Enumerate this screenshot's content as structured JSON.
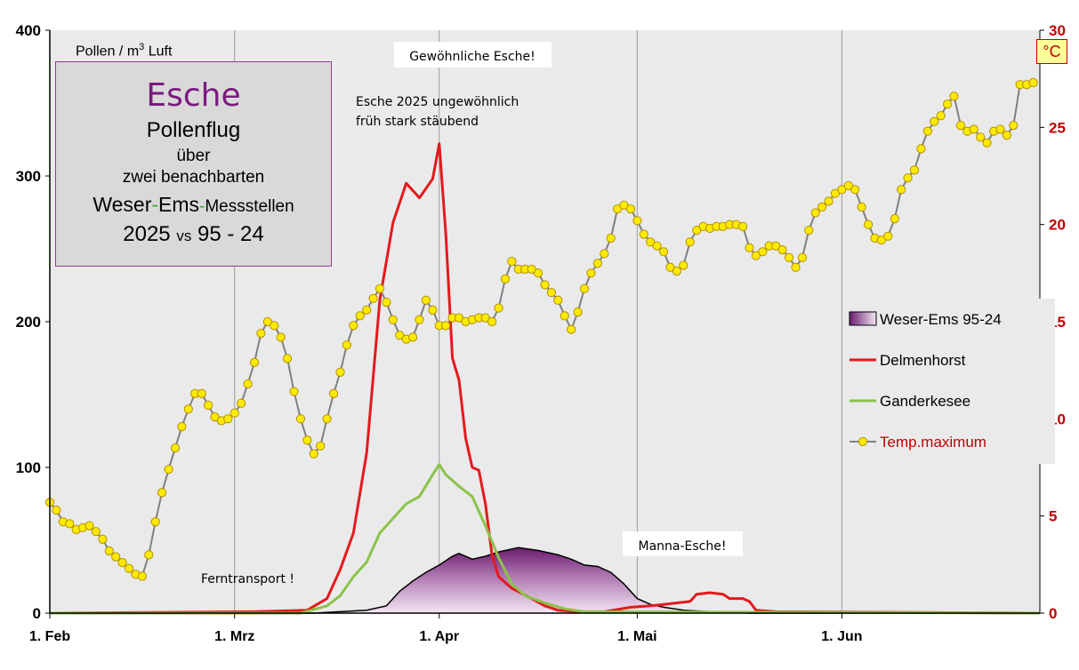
{
  "title_box": {
    "species": "Esche",
    "line1": "Pollenflug",
    "line2": "über",
    "line3": "zwei benachbarten",
    "line4_a": "Weser",
    "line4_dash": "-",
    "line4_b": "Ems",
    "line4_dash2": "-",
    "line4_c": "Messstellen",
    "line5_a": "2025 ",
    "line5_vs": "vs",
    "line5_b": " 95 - 24"
  },
  "unit_label": {
    "text": "Pollen / m",
    "sup": "3",
    "tail": " Luft"
  },
  "celsius_badge": "°C",
  "annotations": {
    "common_ash": "Gewöhnliche Esche!",
    "early_line1": "Esche 2025 ungewöhnlich",
    "early_line2": "früh stark stäubend",
    "manna_ash": "Manna-Esche!",
    "long_range": "Ferntransport  !"
  },
  "colors": {
    "delmenhorst": "#e31a1c",
    "ganderkesee": "#8bc34a",
    "temp_marker": "#ffeb00",
    "temp_line": "#808080",
    "temp_axis": "#c00000",
    "area_top": "#6a1b6e",
    "area_bottom": "#f3e6f3",
    "manna_text": "#e31a1c",
    "plot_bg": "#eaeaea"
  },
  "chart_data": {
    "type": "line",
    "x_ticks": [
      {
        "label": "1. Feb",
        "day": 0
      },
      {
        "label": "1. Mrz",
        "day": 28
      },
      {
        "label": "1. Apr",
        "day": 59
      },
      {
        "label": "1. Mai",
        "day": 89
      },
      {
        "label": "1. Jun",
        "day": 120
      }
    ],
    "x_range": [
      0,
      150
    ],
    "y_left": {
      "label": "Pollen / m³ Luft",
      "range": [
        0,
        400
      ],
      "ticks": [
        0,
        100,
        200,
        300,
        400
      ]
    },
    "y_right": {
      "label": "°C",
      "range": [
        0,
        30
      ],
      "ticks": [
        0,
        5,
        10,
        15,
        20,
        25,
        30
      ]
    },
    "series": [
      {
        "name": "Weser-Ems 95-24",
        "kind": "area",
        "axis": "left",
        "points": [
          [
            0,
            0
          ],
          [
            40,
            0
          ],
          [
            44,
            1
          ],
          [
            48,
            2
          ],
          [
            51,
            5
          ],
          [
            53,
            15
          ],
          [
            55,
            22
          ],
          [
            57,
            28
          ],
          [
            59,
            33
          ],
          [
            61,
            39
          ],
          [
            62,
            41
          ],
          [
            64,
            37
          ],
          [
            66,
            39
          ],
          [
            68,
            42
          ],
          [
            71,
            45
          ],
          [
            74,
            43
          ],
          [
            77,
            40
          ],
          [
            79,
            37
          ],
          [
            81,
            33
          ],
          [
            83,
            32
          ],
          [
            85,
            28
          ],
          [
            87,
            20
          ],
          [
            89,
            10
          ],
          [
            91,
            6
          ],
          [
            93,
            4
          ],
          [
            96,
            2
          ],
          [
            100,
            1
          ],
          [
            106,
            0
          ],
          [
            150,
            0
          ]
        ]
      },
      {
        "name": "Delmenhorst",
        "kind": "line",
        "axis": "left",
        "points": [
          [
            0,
            0
          ],
          [
            31,
            1
          ],
          [
            39,
            2
          ],
          [
            42,
            10
          ],
          [
            44,
            30
          ],
          [
            46,
            55
          ],
          [
            48,
            110
          ],
          [
            50,
            215
          ],
          [
            52,
            268
          ],
          [
            54,
            295
          ],
          [
            56,
            285
          ],
          [
            58,
            298
          ],
          [
            59,
            322
          ],
          [
            60,
            260
          ],
          [
            61,
            175
          ],
          [
            62,
            160
          ],
          [
            63,
            120
          ],
          [
            64,
            100
          ],
          [
            65,
            98
          ],
          [
            66,
            75
          ],
          [
            67,
            40
          ],
          [
            68,
            25
          ],
          [
            70,
            17
          ],
          [
            73,
            10
          ],
          [
            75,
            5
          ],
          [
            77,
            2
          ],
          [
            80,
            1
          ],
          [
            84,
            1
          ],
          [
            88,
            4
          ],
          [
            91,
            5
          ],
          [
            93,
            6
          ],
          [
            95,
            7
          ],
          [
            97,
            8
          ],
          [
            98,
            13
          ],
          [
            100,
            14
          ],
          [
            102,
            13
          ],
          [
            103,
            10
          ],
          [
            105,
            10
          ],
          [
            106,
            8
          ],
          [
            107,
            2
          ],
          [
            110,
            1
          ],
          [
            150,
            0
          ]
        ]
      },
      {
        "name": "Ganderkesee",
        "kind": "line",
        "axis": "left",
        "points": [
          [
            0,
            0
          ],
          [
            38,
            0
          ],
          [
            42,
            5
          ],
          [
            44,
            12
          ],
          [
            46,
            25
          ],
          [
            48,
            35
          ],
          [
            50,
            55
          ],
          [
            52,
            65
          ],
          [
            54,
            75
          ],
          [
            56,
            80
          ],
          [
            58,
            95
          ],
          [
            59,
            102
          ],
          [
            60,
            95
          ],
          [
            62,
            87
          ],
          [
            64,
            80
          ],
          [
            66,
            60
          ],
          [
            68,
            38
          ],
          [
            70,
            20
          ],
          [
            72,
            12
          ],
          [
            75,
            7
          ],
          [
            78,
            3
          ],
          [
            81,
            1
          ],
          [
            150,
            0
          ]
        ]
      },
      {
        "name": "Temp.maximum",
        "kind": "line-marker",
        "axis": "right",
        "values": [
          5.7,
          5.3,
          4.7,
          4.6,
          4.3,
          4.4,
          4.5,
          4.2,
          3.8,
          3.2,
          2.9,
          2.6,
          2.3,
          2.0,
          1.9,
          3.0,
          4.7,
          6.2,
          7.4,
          8.5,
          9.6,
          10.5,
          11.3,
          11.3,
          10.7,
          10.1,
          9.9,
          10.0,
          10.3,
          10.8,
          11.8,
          12.9,
          14.4,
          15.0,
          14.8,
          14.2,
          13.1,
          11.4,
          10.0,
          8.9,
          8.2,
          8.6,
          10.0,
          11.3,
          12.4,
          13.8,
          14.8,
          15.3,
          15.6,
          16.2,
          16.7,
          16.0,
          15.1,
          14.3,
          14.1,
          14.2,
          15.1,
          16.1,
          15.6,
          14.8,
          14.8,
          15.2,
          15.2,
          15.0,
          15.1,
          15.2,
          15.2,
          15.0,
          15.7,
          17.2,
          18.1,
          17.7,
          17.7,
          17.7,
          17.5,
          16.9,
          16.5,
          16.1,
          15.3,
          14.6,
          15.5,
          16.7,
          17.5,
          18.0,
          18.5,
          19.3,
          20.8,
          21.0,
          20.8,
          20.2,
          19.5,
          19.1,
          18.9,
          18.6,
          17.8,
          17.6,
          17.9,
          19.1,
          19.7,
          19.9,
          19.8,
          19.9,
          19.9,
          20.0,
          20.0,
          19.9,
          18.8,
          18.4,
          18.6,
          18.9,
          18.9,
          18.7,
          18.3,
          17.8,
          18.3,
          19.7,
          20.6,
          20.9,
          21.2,
          21.6,
          21.8,
          22.0,
          21.8,
          20.9,
          20.0,
          19.3,
          19.2,
          19.4,
          20.3,
          21.8,
          22.4,
          22.8,
          23.9,
          24.8,
          25.3,
          25.6,
          26.2,
          26.6,
          25.1,
          24.8,
          24.9,
          24.5,
          24.2,
          24.8,
          24.9,
          24.6,
          25.1,
          27.2,
          27.2,
          27.3
        ]
      }
    ],
    "legend": [
      "Weser-Ems 95-24",
      "Delmenhorst",
      "Ganderkesee",
      "Temp.maximum"
    ]
  }
}
